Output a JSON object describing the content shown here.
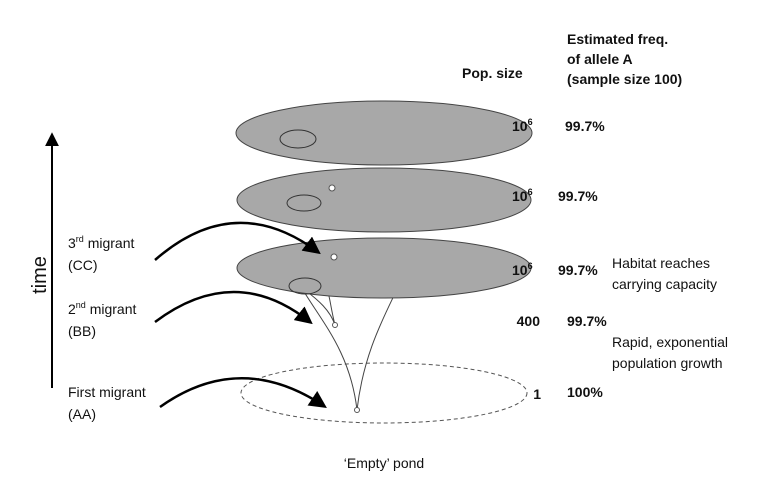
{
  "header": {
    "freq_title": [
      "Estimated freq.",
      "of allele A",
      "(sample size 100)"
    ],
    "pop_size": "Pop. size"
  },
  "rows": [
    {
      "pop": {
        "base": "10",
        "exp": "6"
      },
      "freq": "99.7%"
    },
    {
      "pop": {
        "base": "10",
        "exp": "6"
      },
      "freq": "99.7%"
    },
    {
      "pop": {
        "base": "10",
        "exp": "6"
      },
      "freq": "99.7%"
    },
    {
      "pop": "400",
      "freq": "99.7%"
    },
    {
      "pop": "1",
      "freq": "100%"
    }
  ],
  "annotations": {
    "carrying": [
      "Habitat reaches",
      "carrying capacity"
    ],
    "growth": [
      "Rapid, exponential",
      "population growth"
    ]
  },
  "migrants": [
    {
      "label": {
        "pre": "3",
        "sup": "rd",
        "post": " migrant"
      },
      "genotype": "(CC)"
    },
    {
      "label": {
        "pre": "2",
        "sup": "nd",
        "post": " migrant"
      },
      "genotype": "(BB)"
    },
    {
      "label": "First migrant",
      "genotype": "(AA)"
    }
  ],
  "axis": "time",
  "pond": "‘Empty’ pond"
}
